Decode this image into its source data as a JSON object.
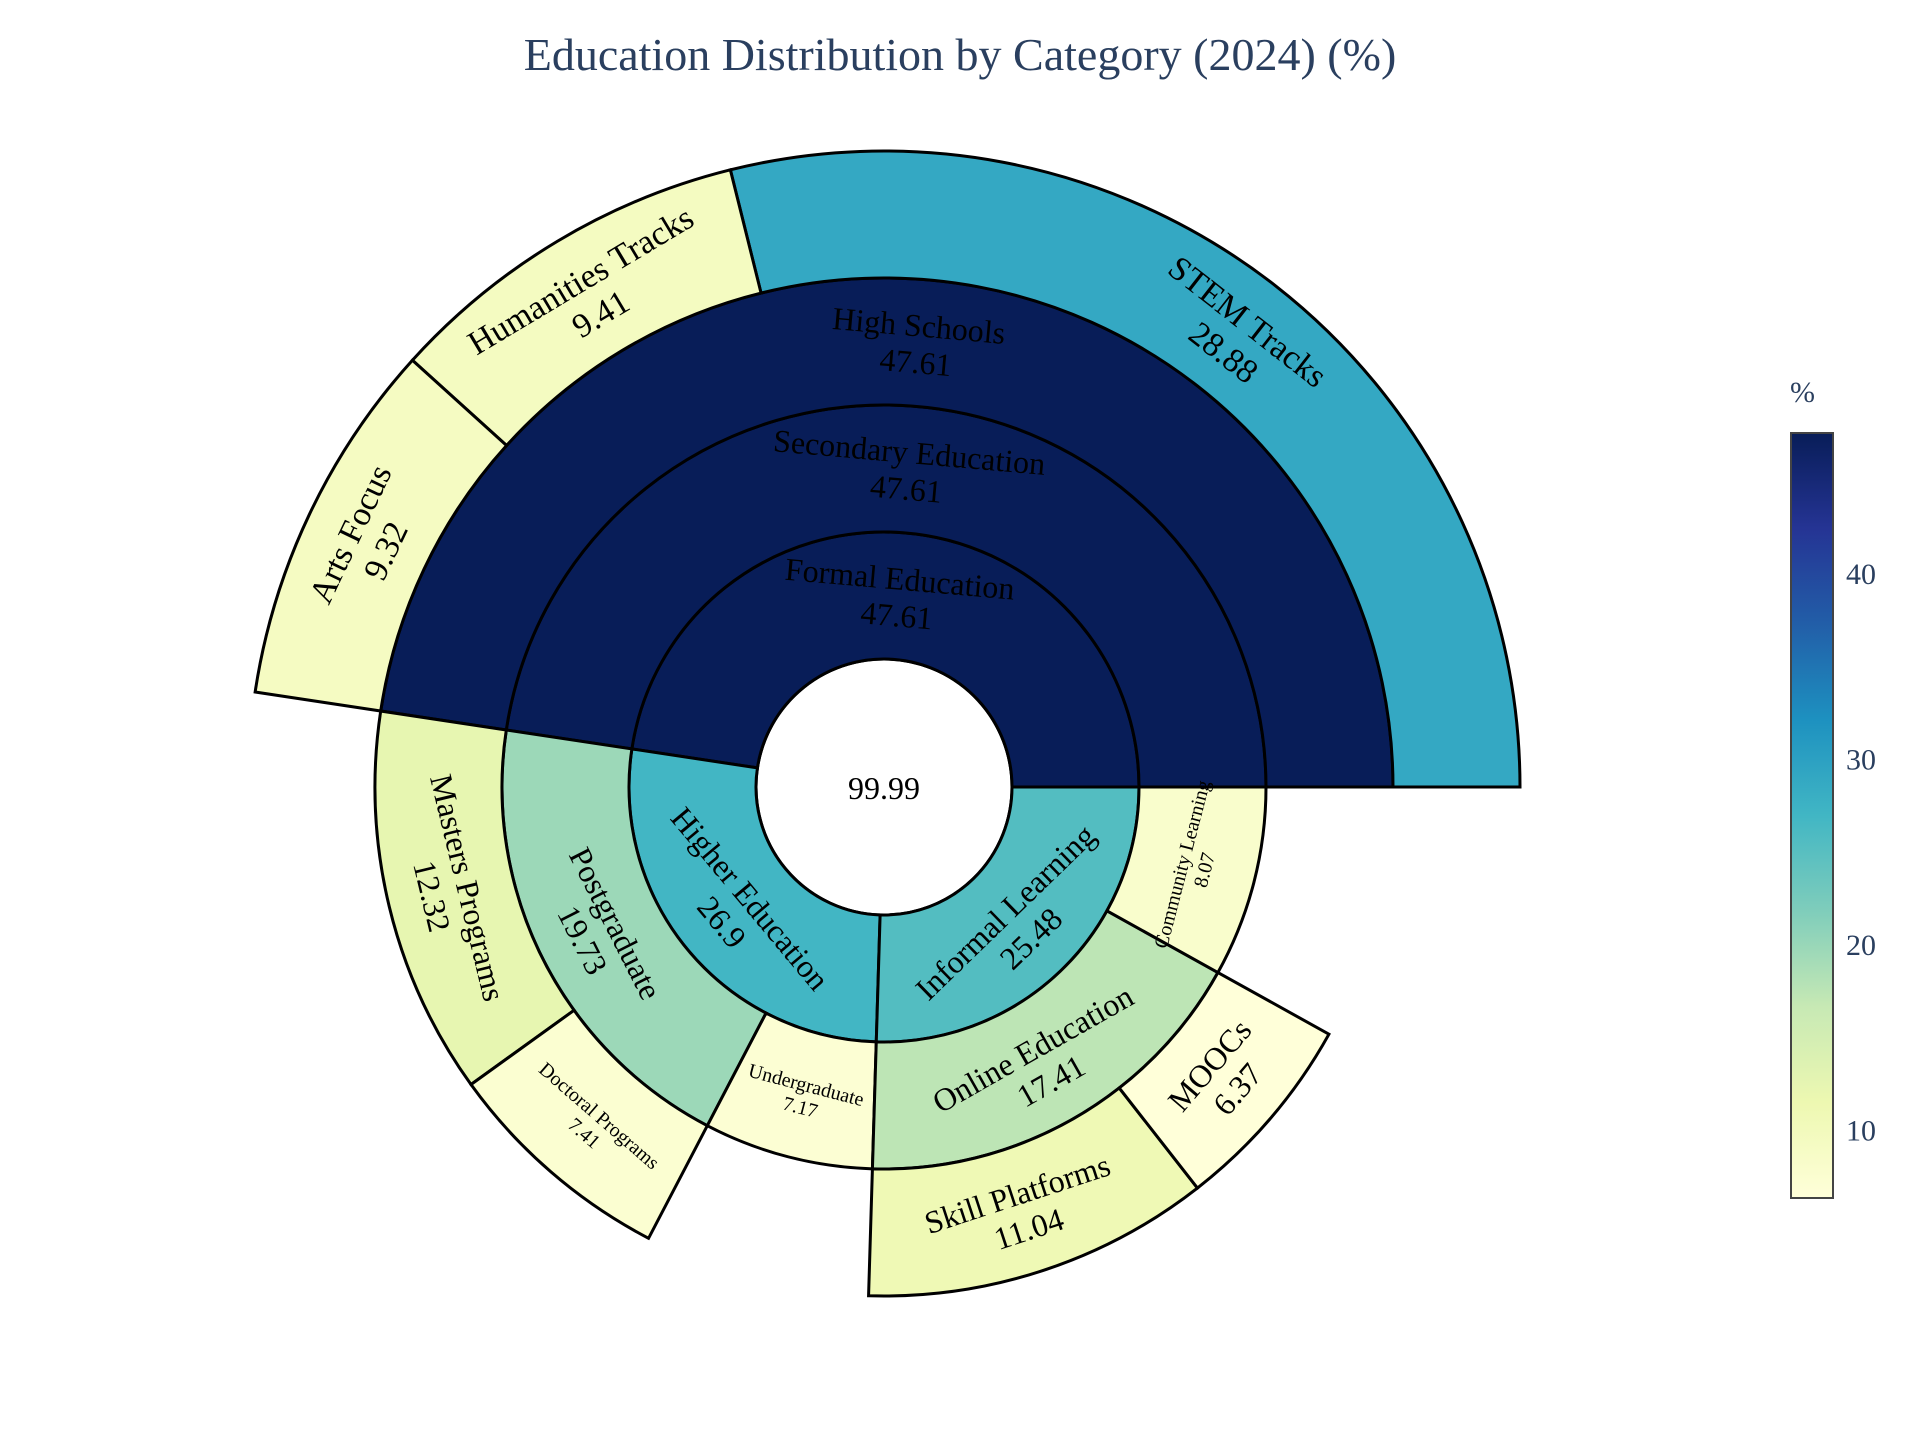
{
  "chart_data": {
    "type": "sunburst",
    "title": "Education Distribution by Category (2024) (%)",
    "root_value": "99.99",
    "colorscale": [
      "#ffffd9",
      "#edf8b1",
      "#c7e9b4",
      "#7fcdbb",
      "#41b6c4",
      "#1d91c0",
      "#225ea8",
      "#253494",
      "#081d58"
    ],
    "color_range": [
      6.37,
      47.61
    ],
    "colorbar": {
      "title": "%",
      "ticks": [
        10,
        20,
        30,
        40
      ]
    },
    "nodes": [
      {
        "id": "formal",
        "label": "Formal Education",
        "value": 47.61,
        "ring": 1,
        "start": 0,
        "end": 47.61
      },
      {
        "id": "secondary",
        "label": "Secondary Education",
        "value": 47.61,
        "ring": 2,
        "start": 0,
        "end": 47.61
      },
      {
        "id": "highschools",
        "label": "High Schools",
        "value": 47.61,
        "ring": 3,
        "start": 0,
        "end": 47.61
      },
      {
        "id": "stem",
        "label": "STEM Tracks",
        "value": 28.88,
        "ring": 4,
        "start": 0,
        "end": 28.88
      },
      {
        "id": "humanities",
        "label": "Humanities Tracks",
        "value": 9.41,
        "ring": 4,
        "start": 28.88,
        "end": 38.29
      },
      {
        "id": "arts",
        "label": "Arts Focus",
        "value": 9.32,
        "ring": 4,
        "start": 38.29,
        "end": 47.61
      },
      {
        "id": "higher",
        "label": "Higher Education",
        "value": 26.9,
        "ring": 1,
        "start": 47.61,
        "end": 74.51
      },
      {
        "id": "postgrad",
        "label": "Postgraduate",
        "value": 19.73,
        "ring": 2,
        "start": 47.61,
        "end": 67.34
      },
      {
        "id": "masters",
        "label": "Masters Programs",
        "value": 12.32,
        "ring": 3,
        "start": 47.61,
        "end": 59.93
      },
      {
        "id": "doctoral",
        "label": "Doctoral Programs",
        "value": 7.41,
        "ring": 3,
        "start": 59.93,
        "end": 67.34,
        "small": true
      },
      {
        "id": "undergrad",
        "label": "Undergraduate",
        "value": 7.17,
        "ring": 2,
        "start": 67.34,
        "end": 74.51,
        "small": true
      },
      {
        "id": "informal",
        "label": "Informal Learning",
        "value": 25.48,
        "ring": 1,
        "start": 74.51,
        "end": 99.99
      },
      {
        "id": "online",
        "label": "Online Education",
        "value": 17.41,
        "ring": 2,
        "start": 74.51,
        "end": 91.92
      },
      {
        "id": "skill",
        "label": "Skill Platforms",
        "value": 11.04,
        "ring": 3,
        "start": 74.51,
        "end": 85.55
      },
      {
        "id": "moocs",
        "label": "MOOCs",
        "value": 6.37,
        "ring": 3,
        "start": 85.55,
        "end": 91.92
      },
      {
        "id": "community",
        "label": "Community Learning",
        "value": 8.07,
        "ring": 2,
        "start": 91.92,
        "end": 99.99,
        "small": true
      }
    ]
  }
}
